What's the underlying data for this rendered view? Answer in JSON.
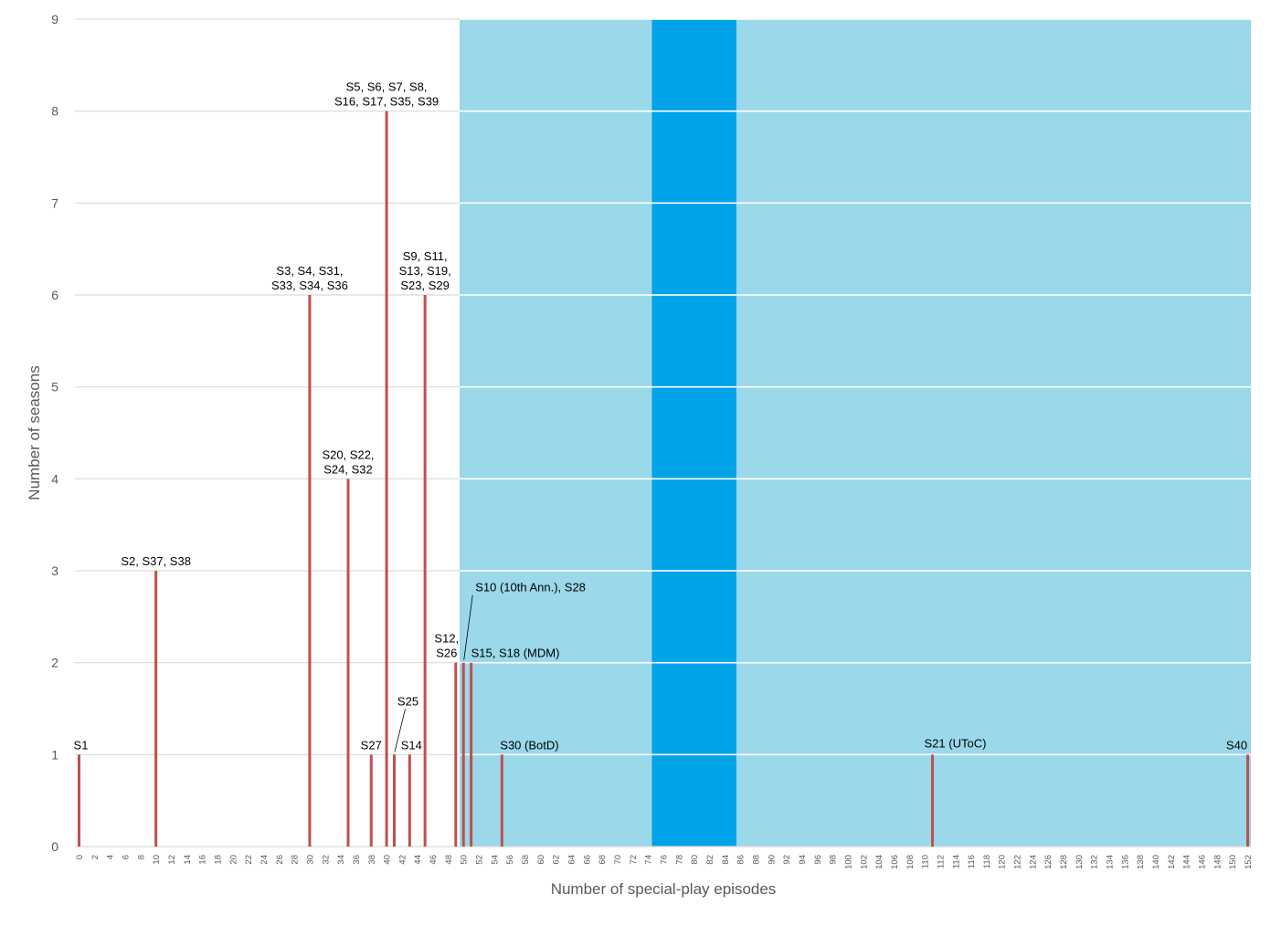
{
  "chart_data": {
    "type": "bar",
    "xlabel": "Number of special-play episodes",
    "ylabel": "Number of seasons",
    "xlim": [
      0,
      152
    ],
    "ylim": [
      0,
      9
    ],
    "x_tick_step": 2,
    "y_ticks": [
      0,
      1,
      2,
      3,
      4,
      5,
      6,
      7,
      8,
      9
    ],
    "grid": true,
    "colors": {
      "bar": "#c0504d",
      "band_light": "#9ad8ea",
      "band_dark": "#00a2e8",
      "grid": "#d9d9d9",
      "text": "#595959"
    },
    "shaded_ranges": [
      {
        "from": 49.5,
        "to": 74.5,
        "style": "light"
      },
      {
        "from": 74.5,
        "to": 85.5,
        "style": "dark"
      },
      {
        "from": 85.5,
        "to": 152.5,
        "style": "light"
      }
    ],
    "points": [
      {
        "x": 0,
        "y": 1,
        "label": [
          "S1"
        ]
      },
      {
        "x": 10,
        "y": 3,
        "label": [
          "S2, S37, S38"
        ]
      },
      {
        "x": 30,
        "y": 6,
        "label": [
          "S3, S4, S31,",
          "S33, S34, S36"
        ]
      },
      {
        "x": 35,
        "y": 4,
        "label": [
          "S20, S22,",
          "S24, S32"
        ]
      },
      {
        "x": 38,
        "y": 1,
        "label": [
          "S27"
        ]
      },
      {
        "x": 40,
        "y": 8,
        "label": [
          "S5, S6, S7, S8,",
          "S16, S17, S35, S39"
        ]
      },
      {
        "x": 41,
        "y": 1,
        "label": [
          "S25"
        ]
      },
      {
        "x": 43,
        "y": 1,
        "label": [
          "S14"
        ]
      },
      {
        "x": 45,
        "y": 6,
        "label": [
          "S9, S11,",
          "S13, S19,",
          "S23, S29"
        ]
      },
      {
        "x": 49,
        "y": 2,
        "label": [
          "S12,",
          "S26"
        ]
      },
      {
        "x": 50,
        "y": 2,
        "label": [
          "S10 (10th Ann.), S28"
        ]
      },
      {
        "x": 51,
        "y": 2,
        "label": [
          "S15, S18 (MDM)"
        ]
      },
      {
        "x": 55,
        "y": 1,
        "label": [
          "S30 (BotD)"
        ]
      },
      {
        "x": 111,
        "y": 1,
        "label": [
          "S21 (UToC)"
        ]
      },
      {
        "x": 152,
        "y": 1,
        "label": [
          "S40"
        ]
      }
    ]
  }
}
